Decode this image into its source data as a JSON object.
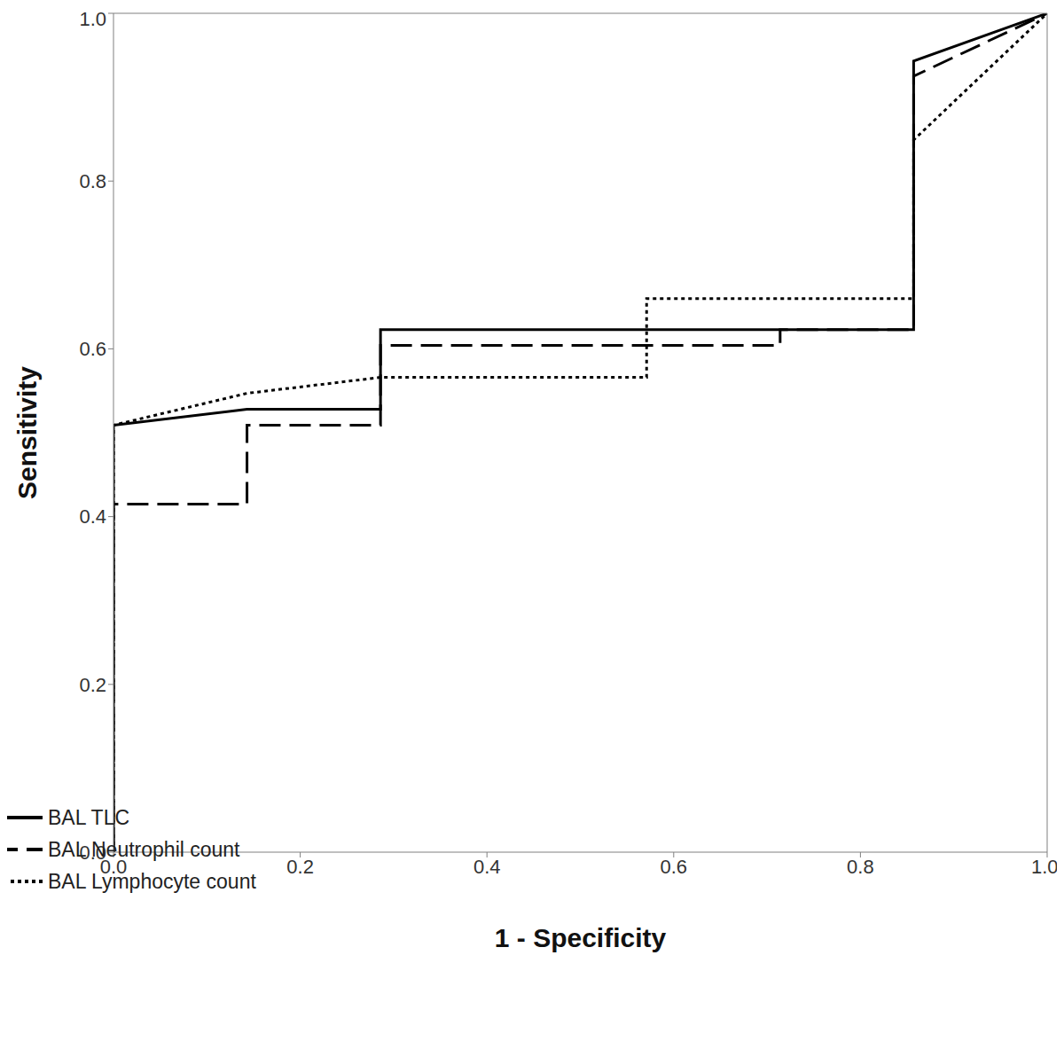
{
  "chart_data": {
    "type": "line",
    "x_label": "1 - Specificity",
    "y_label": "Sensitivity",
    "xlim": [
      0,
      1
    ],
    "ylim": [
      0,
      1
    ],
    "xticks": [
      {
        "value": 0,
        "label": "0.0"
      },
      {
        "value": 0.2,
        "label": "0.2"
      },
      {
        "value": 0.4,
        "label": "0.4"
      },
      {
        "value": 0.6,
        "label": "0.6"
      },
      {
        "value": 0.8,
        "label": "0.8"
      },
      {
        "value": 1,
        "label": "1.0"
      }
    ],
    "yticks": [
      {
        "value": 0,
        "label": "0.0"
      },
      {
        "value": 0.2,
        "label": "0.2"
      },
      {
        "value": 0.4,
        "label": "0.4"
      },
      {
        "value": 0.6,
        "label": "0.6"
      },
      {
        "value": 0.8,
        "label": "0.8"
      },
      {
        "value": 1,
        "label": "1.0"
      }
    ],
    "grid": false,
    "legend": "lower right",
    "series": [
      {
        "name": "BAL TLC",
        "color": "#000000",
        "line_style": "solid",
        "x": [
          0,
          0,
          0.143,
          0.286,
          0.286,
          0.857,
          0.857,
          1
        ],
        "values": [
          0,
          0.509,
          0.528,
          0.528,
          0.623,
          0.623,
          0.943,
          1
        ]
      },
      {
        "name": "BAL Neutrophil count",
        "color": "#000000",
        "line_style": "dashed",
        "x": [
          0,
          0,
          0.143,
          0.143,
          0.286,
          0.286,
          0.714,
          0.714,
          0.857,
          0.857,
          1
        ],
        "values": [
          0,
          0.415,
          0.415,
          0.509,
          0.509,
          0.604,
          0.604,
          0.623,
          0.623,
          0.925,
          1
        ]
      },
      {
        "name": "BAL Lymphocyte count",
        "color": "#000000",
        "line_style": "dotted",
        "x": [
          0,
          0,
          0.143,
          0.286,
          0.571,
          0.571,
          0.857,
          0.857,
          1
        ],
        "values": [
          0,
          0.509,
          0.547,
          0.566,
          0.566,
          0.66,
          0.66,
          0.849,
          1
        ]
      }
    ]
  }
}
